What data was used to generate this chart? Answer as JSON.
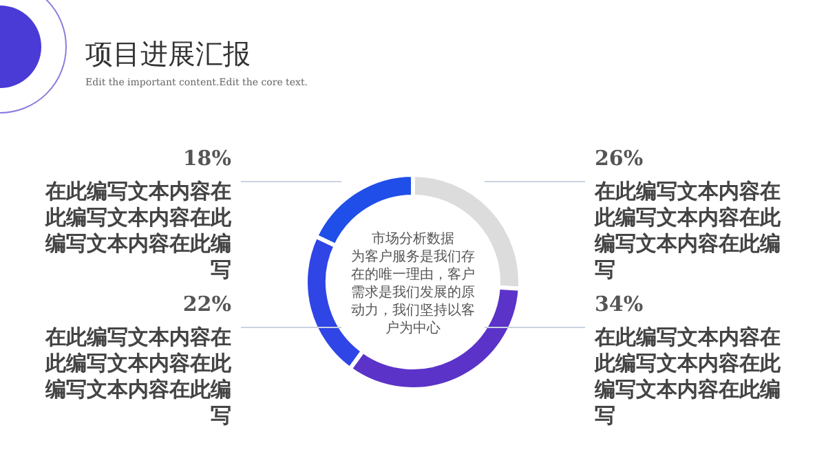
{
  "chart_data": {
    "type": "donut",
    "title": "项目进展汇报",
    "subtitle": "Edit the important content.Edit the core text.",
    "categories": [
      null,
      null,
      null,
      null
    ],
    "values": [
      26,
      34,
      22,
      18
    ],
    "colors": [
      "#dcdcdc",
      "#5b33c8",
      "#2f45e6",
      "#1f4fe8"
    ],
    "value_labels": [
      "26%",
      "34%",
      "22%",
      "18%"
    ],
    "annotations": [
      "市场分析数据",
      "为客户服务是我们存在的唯一理由，客户需求是我们发展的原动力，我们坚持以客户为中心",
      "在此编写文本内容在此编写文本内容在此编写文本内容在此编写",
      "在此编写文本内容在此编写文本内容在此编写文本内容在此编写",
      "在此编写文本内容在此编写文本内容在此编写文本内容在此编写",
      "在此编写文本内容在此编写文本内容在此编写文本内容在此编写"
    ]
  }
}
